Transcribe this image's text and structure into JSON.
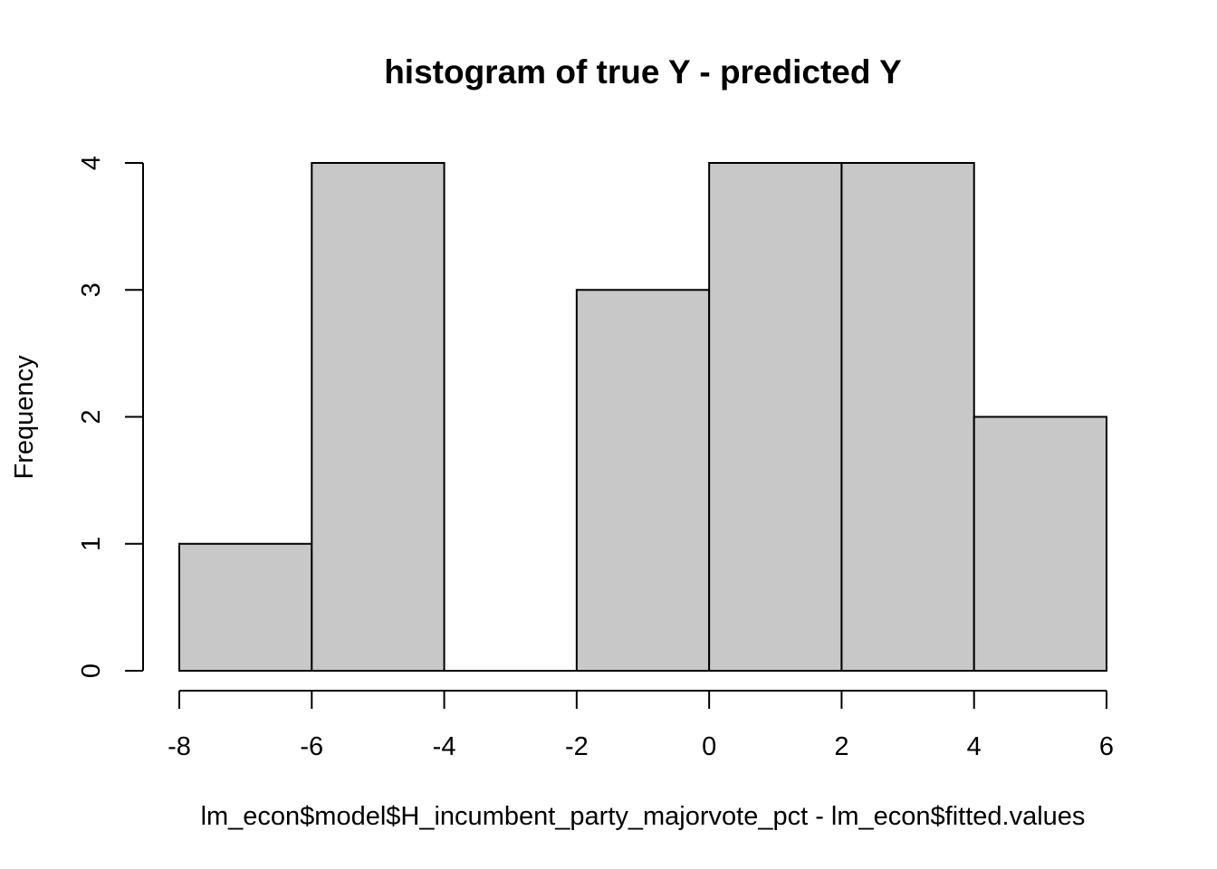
{
  "chart_data": {
    "type": "bar",
    "histogram": true,
    "title": "histogram of true Y - predicted Y",
    "xlabel": "lm_econ$model$H_incumbent_party_majorvote_pct - lm_econ$fitted.values",
    "ylabel": "Frequency",
    "bins": [
      {
        "x0": -8,
        "x1": -6,
        "count": 1
      },
      {
        "x0": -6,
        "x1": -4,
        "count": 4
      },
      {
        "x0": -4,
        "x1": -2,
        "count": 0
      },
      {
        "x0": -2,
        "x1": 0,
        "count": 3
      },
      {
        "x0": 0,
        "x1": 2,
        "count": 4
      },
      {
        "x0": 2,
        "x1": 4,
        "count": 4
      },
      {
        "x0": 4,
        "x1": 6,
        "count": 2
      }
    ],
    "xlim": [
      -8,
      6
    ],
    "ylim": [
      0,
      4
    ],
    "xticks": [
      "-8",
      "-6",
      "-4",
      "-2",
      "0",
      "2",
      "4",
      "6"
    ],
    "yticks": [
      "0",
      "1",
      "2",
      "3",
      "4"
    ],
    "grid": false,
    "colors": {
      "bar_fill": "#c8c8c8",
      "bar_stroke": "#000000",
      "background": "#ffffff"
    }
  }
}
